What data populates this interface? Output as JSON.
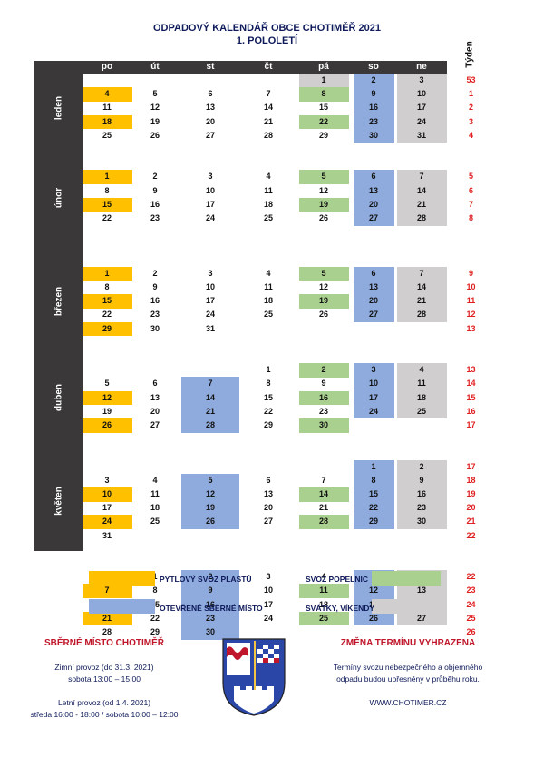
{
  "title_line1": "ODPADOVÝ KALENDÁŘ OBCE CHOTIMĚŘ 2021",
  "title_line2": "1. POLOLETÍ",
  "week_header": "Týden",
  "days": [
    "po",
    "út",
    "st",
    "čt",
    "pá",
    "so",
    "ne"
  ],
  "colors": {
    "plasty": "#ffc000",
    "popelnice": "#a9d08e",
    "sberne": "#8faadc",
    "svatky": "#d0cece",
    "dark": "#3a3838",
    "red": "#e02020"
  },
  "months": [
    {
      "name": "leden",
      "rows": [
        {
          "week": "53",
          "cells": [
            "",
            "",
            "",
            "",
            "1",
            "2",
            "3"
          ],
          "c": [
            "",
            "",
            "",
            "",
            "g",
            "b",
            "g"
          ]
        },
        {
          "week": "1",
          "cells": [
            "4",
            "5",
            "6",
            "7",
            "8",
            "9",
            "10"
          ],
          "c": [
            "y",
            "",
            "",
            "",
            "p",
            "b",
            "g"
          ]
        },
        {
          "week": "2",
          "cells": [
            "11",
            "12",
            "13",
            "14",
            "15",
            "16",
            "17"
          ],
          "c": [
            "",
            "",
            "",
            "",
            "",
            "b",
            "g"
          ]
        },
        {
          "week": "3",
          "cells": [
            "18",
            "19",
            "20",
            "21",
            "22",
            "23",
            "24"
          ],
          "c": [
            "y",
            "",
            "",
            "",
            "p",
            "b",
            "g"
          ]
        },
        {
          "week": "4",
          "cells": [
            "25",
            "26",
            "27",
            "28",
            "29",
            "30",
            "31"
          ],
          "c": [
            "",
            "",
            "",
            "",
            "",
            "b",
            "g"
          ]
        }
      ]
    },
    {
      "name": "únor",
      "rows": [
        {
          "week": "5",
          "cells": [
            "1",
            "2",
            "3",
            "4",
            "5",
            "6",
            "7"
          ],
          "c": [
            "y",
            "",
            "",
            "",
            "p",
            "b",
            "g"
          ]
        },
        {
          "week": "6",
          "cells": [
            "8",
            "9",
            "10",
            "11",
            "12",
            "13",
            "14"
          ],
          "c": [
            "",
            "",
            "",
            "",
            "",
            "b",
            "g"
          ]
        },
        {
          "week": "7",
          "cells": [
            "15",
            "16",
            "17",
            "18",
            "19",
            "20",
            "21"
          ],
          "c": [
            "y",
            "",
            "",
            "",
            "p",
            "b",
            "g"
          ]
        },
        {
          "week": "8",
          "cells": [
            "22",
            "23",
            "24",
            "25",
            "26",
            "27",
            "28"
          ],
          "c": [
            "",
            "",
            "",
            "",
            "",
            "b",
            "g"
          ]
        }
      ]
    },
    {
      "name": "březen",
      "rows": [
        {
          "week": "9",
          "cells": [
            "1",
            "2",
            "3",
            "4",
            "5",
            "6",
            "7"
          ],
          "c": [
            "y",
            "",
            "",
            "",
            "p",
            "b",
            "g"
          ]
        },
        {
          "week": "10",
          "cells": [
            "8",
            "9",
            "10",
            "11",
            "12",
            "13",
            "14"
          ],
          "c": [
            "",
            "",
            "",
            "",
            "",
            "b",
            "g"
          ]
        },
        {
          "week": "11",
          "cells": [
            "15",
            "16",
            "17",
            "18",
            "19",
            "20",
            "21"
          ],
          "c": [
            "y",
            "",
            "",
            "",
            "p",
            "b",
            "g"
          ]
        },
        {
          "week": "12",
          "cells": [
            "22",
            "23",
            "24",
            "25",
            "26",
            "27",
            "28"
          ],
          "c": [
            "",
            "",
            "",
            "",
            "",
            "b",
            "g"
          ]
        },
        {
          "week": "13",
          "cells": [
            "29",
            "30",
            "31",
            "",
            "",
            "",
            ""
          ],
          "c": [
            "y",
            "",
            "",
            "",
            "",
            "",
            ""
          ]
        }
      ]
    },
    {
      "name": "duben",
      "rows": [
        {
          "week": "13",
          "cells": [
            "",
            "",
            "",
            "1",
            "2",
            "3",
            "4"
          ],
          "c": [
            "",
            "",
            "",
            "",
            "p",
            "b",
            "g"
          ]
        },
        {
          "week": "14",
          "cells": [
            "5",
            "6",
            "7",
            "8",
            "9",
            "10",
            "11"
          ],
          "c": [
            "",
            "",
            "b",
            "",
            "",
            "b",
            "g"
          ]
        },
        {
          "week": "15",
          "cells": [
            "12",
            "13",
            "14",
            "15",
            "16",
            "17",
            "18"
          ],
          "c": [
            "y",
            "",
            "b",
            "",
            "p",
            "b",
            "g"
          ]
        },
        {
          "week": "16",
          "cells": [
            "19",
            "20",
            "21",
            "22",
            "23",
            "24",
            "25"
          ],
          "c": [
            "",
            "",
            "b",
            "",
            "",
            "b",
            "g"
          ]
        },
        {
          "week": "17",
          "cells": [
            "26",
            "27",
            "28",
            "29",
            "30",
            "",
            ""
          ],
          "c": [
            "y",
            "",
            "b",
            "",
            "p",
            "",
            ""
          ]
        }
      ]
    },
    {
      "name": "květen",
      "rows": [
        {
          "week": "17",
          "cells": [
            "",
            "",
            "",
            "",
            "",
            "1",
            "2"
          ],
          "c": [
            "",
            "",
            "",
            "",
            "",
            "b",
            "g"
          ]
        },
        {
          "week": "18",
          "cells": [
            "3",
            "4",
            "5",
            "6",
            "7",
            "8",
            "9"
          ],
          "c": [
            "",
            "",
            "b",
            "",
            "",
            "b",
            "g"
          ]
        },
        {
          "week": "19",
          "cells": [
            "10",
            "11",
            "12",
            "13",
            "14",
            "15",
            "16"
          ],
          "c": [
            "y",
            "",
            "b",
            "",
            "p",
            "b",
            "g"
          ]
        },
        {
          "week": "20",
          "cells": [
            "17",
            "18",
            "19",
            "20",
            "21",
            "22",
            "23"
          ],
          "c": [
            "",
            "",
            "b",
            "",
            "",
            "b",
            "g"
          ]
        },
        {
          "week": "21",
          "cells": [
            "24",
            "25",
            "26",
            "27",
            "28",
            "29",
            "30"
          ],
          "c": [
            "y",
            "",
            "b",
            "",
            "p",
            "b",
            "g"
          ]
        },
        {
          "week": "22",
          "cells": [
            "31",
            "",
            "",
            "",
            "",
            "",
            ""
          ],
          "c": [
            "",
            "",
            "",
            "",
            "",
            "",
            ""
          ]
        }
      ]
    },
    {
      "name": "červen",
      "rows": [
        {
          "week": "22",
          "cells": [
            "",
            "1",
            "2",
            "3",
            "4",
            "5",
            "6"
          ],
          "c": [
            "",
            "",
            "b",
            "",
            "",
            "b",
            "g"
          ]
        },
        {
          "week": "23",
          "cells": [
            "7",
            "8",
            "9",
            "10",
            "11",
            "12",
            "13"
          ],
          "c": [
            "y",
            "",
            "b",
            "",
            "p",
            "b",
            "g"
          ]
        },
        {
          "week": "24",
          "cells": [
            "14",
            "15",
            "16",
            "17",
            "18",
            "19",
            "20"
          ],
          "c": [
            "",
            "",
            "b",
            "",
            "",
            "b",
            "g"
          ]
        },
        {
          "week": "25",
          "cells": [
            "21",
            "22",
            "23",
            "24",
            "25",
            "26",
            "27"
          ],
          "c": [
            "y",
            "",
            "b",
            "",
            "p",
            "b",
            "g"
          ]
        },
        {
          "week": "26",
          "cells": [
            "28",
            "29",
            "30",
            "",
            "",
            "",
            ""
          ],
          "c": [
            "",
            "",
            "b",
            "",
            "",
            "",
            ""
          ]
        }
      ]
    }
  ],
  "legend": {
    "plasty": "PYTLOVÝ SVOZ PLASTŮ",
    "popelnice": "SVOZ POPELNIC",
    "sberne": "OTEVŘENÉ SBĚRNÉ MÍSTO",
    "svatky": "SVÁTKY, VÍKENDY"
  },
  "footer": {
    "left_title": "SBĚRNÉ MÍSTO CHOTIMĚŘ",
    "winter": "Zimní provoz (do 31.3. 2021)",
    "winter_hours": "sobota 13:00 – 15:00",
    "summer": "Letní provoz (od 1.4. 2021)",
    "summer_hours": "středa 16:00 - 18:00 / sobota 10:00 – 12:00",
    "right_title": "ZMĚNA TERMÍNU VYHRAZENA",
    "note1": "Termíny svozu nebezpečného a objemného",
    "note2": "odpadu budou upřesněny v průběhu roku.",
    "web": "WWW.CHOTIMER.CZ"
  }
}
